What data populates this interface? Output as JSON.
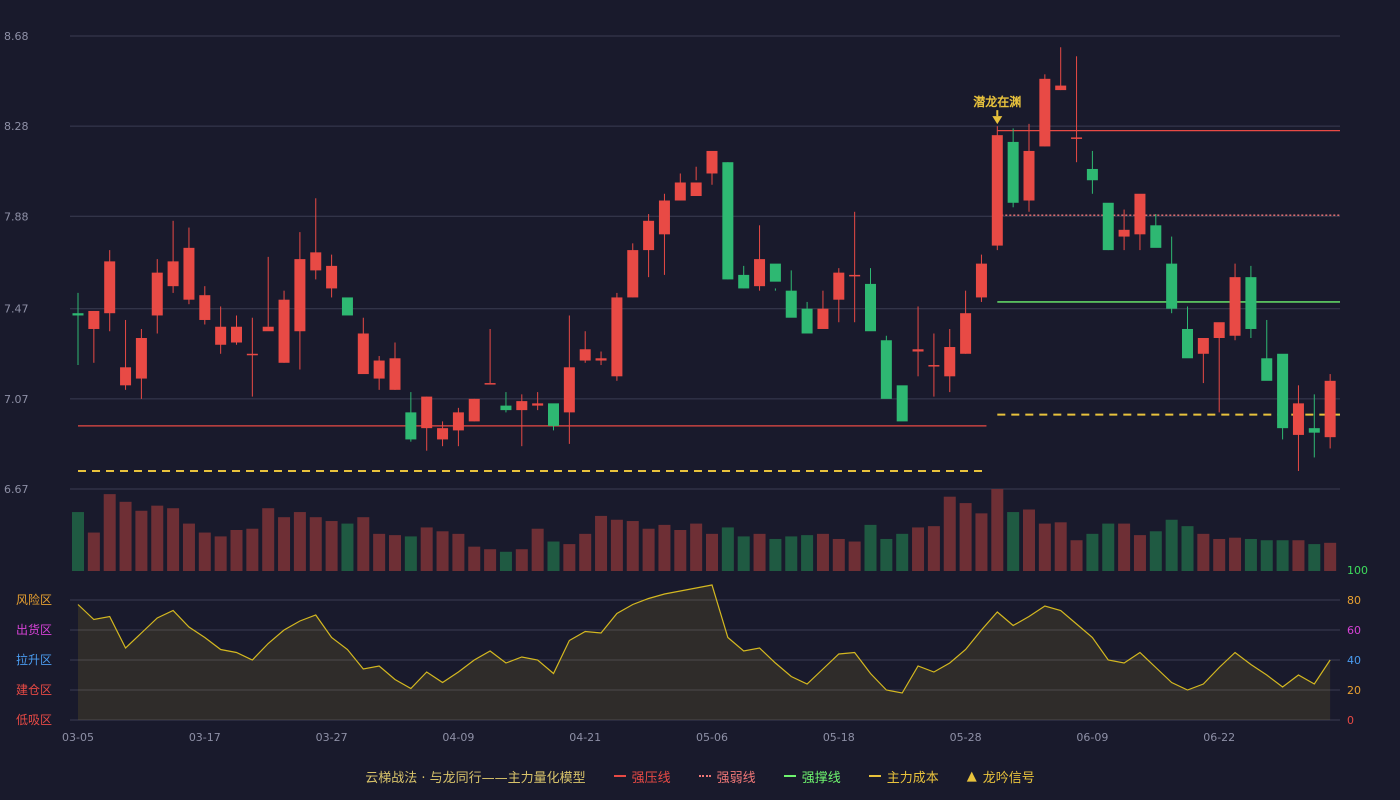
{
  "chart_data": {
    "type": "candlestick",
    "x_ticks": [
      "03-05",
      "03-17",
      "03-27",
      "04-09",
      "04-21",
      "05-06",
      "05-18",
      "05-28",
      "06-09",
      "06-22"
    ],
    "price_axis": {
      "ticks": [
        "8.68",
        "8.28",
        "7.88",
        "7.47",
        "7.07",
        "6.67"
      ],
      "range": [
        6.67,
        8.68
      ]
    },
    "candles": [
      [
        7.45,
        7.44,
        7.54,
        7.22
      ],
      [
        7.38,
        7.46,
        7.46,
        7.23
      ],
      [
        7.45,
        7.68,
        7.73,
        7.37
      ],
      [
        7.13,
        7.21,
        7.42,
        7.11
      ],
      [
        7.16,
        7.34,
        7.38,
        7.07
      ],
      [
        7.44,
        7.63,
        7.69,
        7.36
      ],
      [
        7.57,
        7.68,
        7.86,
        7.54
      ],
      [
        7.51,
        7.74,
        7.83,
        7.49
      ],
      [
        7.42,
        7.53,
        7.57,
        7.4
      ],
      [
        7.31,
        7.39,
        7.48,
        7.27
      ],
      [
        7.32,
        7.39,
        7.44,
        7.31
      ],
      [
        7.27,
        7.27,
        7.43,
        7.08
      ],
      [
        7.37,
        7.39,
        7.7,
        7.39
      ],
      [
        7.23,
        7.51,
        7.55,
        7.23
      ],
      [
        7.37,
        7.69,
        7.81,
        7.2
      ],
      [
        7.64,
        7.72,
        7.96,
        7.6
      ],
      [
        7.56,
        7.66,
        7.71,
        7.52
      ],
      [
        7.52,
        7.44,
        7.51,
        7.47
      ],
      [
        7.18,
        7.36,
        7.43,
        7.19
      ],
      [
        7.16,
        7.24,
        7.26,
        7.11
      ],
      [
        7.11,
        7.25,
        7.32,
        7.11
      ],
      [
        7.01,
        6.89,
        7.1,
        6.88
      ],
      [
        6.94,
        7.08,
        7.08,
        6.84
      ],
      [
        6.89,
        6.94,
        6.97,
        6.86
      ],
      [
        6.93,
        7.01,
        7.03,
        6.86
      ],
      [
        6.97,
        7.07,
        7.07,
        6.97
      ],
      [
        7.14,
        7.14,
        7.38,
        7.14
      ],
      [
        7.04,
        7.02,
        7.1,
        7.01
      ],
      [
        7.02,
        7.06,
        7.09,
        6.86
      ],
      [
        7.04,
        7.05,
        7.1,
        7.02
      ],
      [
        7.05,
        6.95,
        7.04,
        6.93
      ],
      [
        7.01,
        7.21,
        7.44,
        6.87
      ],
      [
        7.24,
        7.29,
        7.37,
        7.23
      ],
      [
        7.24,
        7.25,
        7.28,
        7.22
      ],
      [
        7.17,
        7.52,
        7.54,
        7.15
      ],
      [
        7.52,
        7.73,
        7.76,
        7.52
      ],
      [
        7.73,
        7.86,
        7.89,
        7.61
      ],
      [
        7.8,
        7.95,
        7.98,
        7.62
      ],
      [
        7.95,
        8.03,
        8.07,
        7.95
      ],
      [
        7.97,
        8.03,
        8.1,
        8.04
      ],
      [
        8.07,
        8.17,
        8.16,
        8.02
      ],
      [
        8.12,
        7.6,
        8.12,
        7.6
      ],
      [
        7.62,
        7.56,
        7.66,
        7.56
      ],
      [
        7.57,
        7.69,
        7.84,
        7.55
      ],
      [
        7.67,
        7.59,
        7.56,
        7.55
      ],
      [
        7.55,
        7.43,
        7.64,
        7.45
      ],
      [
        7.47,
        7.36,
        7.5,
        7.36
      ],
      [
        7.38,
        7.47,
        7.55,
        7.42
      ],
      [
        7.51,
        7.63,
        7.65,
        7.41
      ],
      [
        7.62,
        7.62,
        7.9,
        7.41
      ],
      [
        7.58,
        7.37,
        7.65,
        7.41
      ],
      [
        7.33,
        7.07,
        7.35,
        7.08
      ],
      [
        7.13,
        6.97,
        7.1,
        6.99
      ],
      [
        7.28,
        7.29,
        7.48,
        7.17
      ],
      [
        7.22,
        7.22,
        7.36,
        7.08
      ],
      [
        7.17,
        7.3,
        7.38,
        7.1
      ],
      [
        7.27,
        7.45,
        7.55,
        7.27
      ],
      [
        7.52,
        7.67,
        7.71,
        7.5
      ],
      [
        7.75,
        8.24,
        8.28,
        7.73
      ],
      [
        8.21,
        7.94,
        8.27,
        7.92
      ],
      [
        7.95,
        8.17,
        8.29,
        7.9
      ],
      [
        8.19,
        8.49,
        8.51,
        8.19
      ],
      [
        8.44,
        8.46,
        8.63,
        8.44
      ],
      [
        8.23,
        8.23,
        8.59,
        8.12
      ],
      [
        8.09,
        8.04,
        8.17,
        7.98
      ],
      [
        7.94,
        7.73,
        7.92,
        7.73
      ],
      [
        7.79,
        7.82,
        7.91,
        7.73
      ],
      [
        7.8,
        7.98,
        7.94,
        7.73
      ],
      [
        7.84,
        7.74,
        7.89,
        7.75
      ],
      [
        7.67,
        7.47,
        7.79,
        7.45
      ],
      [
        7.38,
        7.25,
        7.48,
        7.26
      ],
      [
        7.27,
        7.34,
        7.34,
        7.14
      ],
      [
        7.34,
        7.41,
        7.37,
        7.01
      ],
      [
        7.35,
        7.61,
        7.67,
        7.33
      ],
      [
        7.61,
        7.38,
        7.66,
        7.34
      ],
      [
        7.25,
        7.15,
        7.42,
        7.16
      ],
      [
        7.27,
        6.94,
        7.26,
        6.89
      ],
      [
        6.91,
        7.05,
        7.13,
        6.75
      ],
      [
        6.94,
        6.92,
        7.09,
        6.81
      ],
      [
        6.9,
        7.15,
        7.18,
        6.85
      ]
    ],
    "volume": [
      46,
      30,
      60,
      54,
      47,
      51,
      49,
      37,
      30,
      27,
      32,
      33,
      49,
      42,
      46,
      42,
      39,
      37,
      42,
      29,
      28,
      27,
      34,
      31,
      29,
      19,
      17,
      15,
      17,
      33,
      23,
      21,
      29,
      43,
      40,
      39,
      33,
      36,
      32,
      37,
      29,
      34,
      27,
      29,
      25,
      27,
      28,
      29,
      25,
      23,
      36,
      25,
      29,
      34,
      35,
      58,
      53,
      45,
      64,
      46,
      48,
      37,
      38,
      24,
      29,
      37,
      37,
      28,
      31,
      40,
      35,
      29,
      25,
      26,
      25,
      24,
      24,
      24,
      21,
      22
    ],
    "indicator": {
      "ticks_right": [
        "100",
        "80",
        "60",
        "40",
        "20",
        "0"
      ],
      "zones_left": [
        "风险区",
        "出货区",
        "拉升区",
        "建仓区",
        "低吸区"
      ],
      "values": [
        77,
        67,
        69,
        48,
        58,
        68,
        73,
        62,
        55,
        47,
        45,
        40,
        51,
        60,
        66,
        70,
        55,
        47,
        34,
        36,
        27,
        21,
        32,
        25,
        32,
        40,
        46,
        38,
        42,
        40,
        31,
        53,
        59,
        58,
        71,
        77,
        81,
        84,
        86,
        88,
        90,
        55,
        46,
        48,
        38,
        29,
        24,
        34,
        44,
        45,
        31,
        20,
        18,
        36,
        32,
        38,
        47,
        60,
        72,
        63,
        69,
        76,
        73,
        64,
        55,
        40,
        38,
        45,
        35,
        25,
        20,
        24,
        35,
        45,
        37,
        30,
        22,
        30,
        24,
        40
      ]
    },
    "lines": [
      {
        "name": "强压线",
        "color": "#e84a45",
        "style": "solid",
        "value": 6.95,
        "from": 0,
        "to": 57
      },
      {
        "name": "强压线",
        "color": "#e84a45",
        "style": "solid",
        "value": 8.26,
        "from": 58,
        "to": 79
      },
      {
        "name": "强弱线",
        "color": "#f07777",
        "style": "dotted",
        "value": 7.885,
        "from": 58,
        "to": 79
      },
      {
        "name": "强撑线",
        "color": "#6ef46e",
        "style": "solid",
        "value": 7.5,
        "from": 58,
        "to": 79
      },
      {
        "name": "主力成本",
        "color": "#e8c23c",
        "style": "dashed",
        "value": 6.75,
        "from": 0,
        "to": 57
      },
      {
        "name": "主力成本",
        "color": "#e8c23c",
        "style": "dashed",
        "value": 7.0,
        "from": 58,
        "to": 79
      }
    ],
    "signal": {
      "label": "潜龙在渊",
      "index": 58
    },
    "colors": {
      "up": "#e84a45",
      "down": "#2eb872",
      "vol_up": "#6e2f35",
      "vol_down": "#1f5a42",
      "indicator": "#d4b820",
      "grid": "#3a3c52"
    }
  },
  "legend": {
    "title": "云梯战法 · 与龙同行——主力量化模型",
    "items": [
      {
        "label": "强压线",
        "color": "#e84a45",
        "style": "solid"
      },
      {
        "label": "强弱线",
        "color": "#f07777",
        "style": "dotted"
      },
      {
        "label": "强撑线",
        "color": "#6ef46e",
        "style": "solid"
      },
      {
        "label": "主力成本",
        "color": "#e8c23c",
        "style": "dashed"
      }
    ],
    "signal_label": "龙吟信号",
    "signal_icon": "triangle-icon"
  }
}
